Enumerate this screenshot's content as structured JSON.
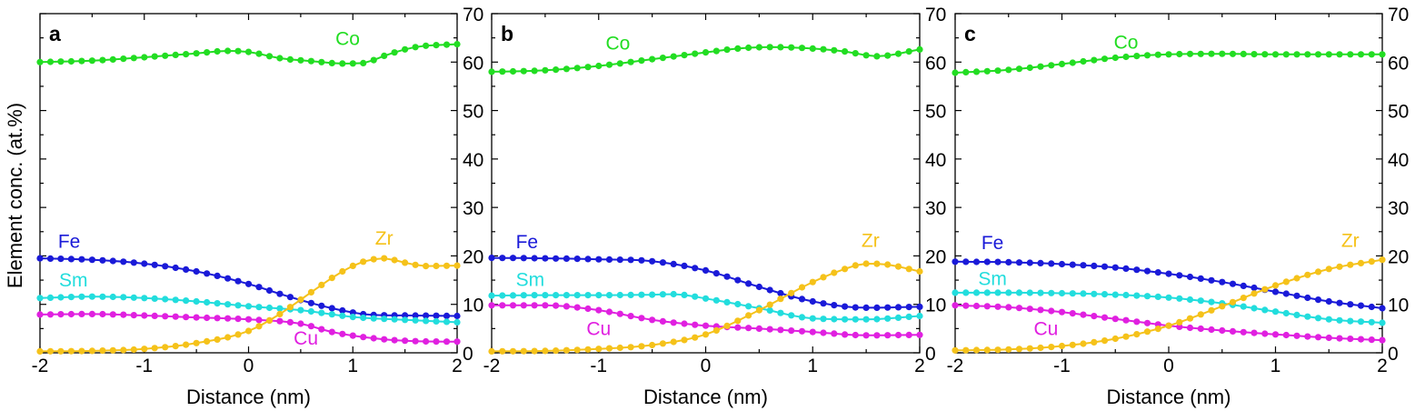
{
  "figure": {
    "ylabel": "Element conc. (at.%)"
  },
  "chart_data": [
    {
      "panel": "a",
      "type": "line",
      "xlabel": "Distance (nm)",
      "ylabel": "Element conc. (at.%)",
      "xlim": [
        -2,
        2
      ],
      "ylim": [
        0,
        70
      ],
      "xticks": [
        "-2",
        "-1",
        "0",
        "1",
        "2"
      ],
      "yticks": [
        "0",
        "10",
        "20",
        "30",
        "40",
        "50",
        "60",
        "70"
      ],
      "series": [
        {
          "name": "Co",
          "color": "#22dd22",
          "x": [
            -2,
            -1.5,
            -1,
            -0.5,
            -0.2,
            0,
            0.3,
            0.6,
            0.9,
            1.1,
            1.3,
            1.6,
            2
          ],
          "values": [
            60.0,
            60.3,
            61.0,
            61.8,
            62.3,
            62.1,
            60.8,
            60.2,
            59.7,
            59.8,
            61.3,
            63.1,
            63.7
          ]
        },
        {
          "name": "Fe",
          "color": "#1a1ad8",
          "x": [
            -2,
            -1.5,
            -1,
            -0.5,
            0,
            0.4,
            0.8,
            1.2,
            1.6,
            2
          ],
          "values": [
            19.5,
            19.2,
            18.4,
            16.8,
            14.2,
            11.5,
            9.2,
            7.8,
            7.7,
            7.6
          ]
        },
        {
          "name": "Sm",
          "color": "#22dddd",
          "x": [
            -2,
            -1.5,
            -1,
            -0.5,
            0,
            0.5,
            1,
            1.5,
            2
          ],
          "values": [
            11.3,
            11.6,
            11.3,
            10.6,
            9.6,
            8.8,
            7.4,
            6.8,
            6.3
          ]
        },
        {
          "name": "Cu",
          "color": "#e020e0",
          "x": [
            -2,
            -1.5,
            -1,
            -0.5,
            0,
            0.5,
            0.8,
            1.2,
            1.6,
            2
          ],
          "values": [
            7.9,
            8.0,
            7.7,
            7.3,
            6.9,
            6.0,
            4.3,
            3.0,
            2.4,
            2.3
          ]
        },
        {
          "name": "Zr",
          "color": "#f5c21a",
          "x": [
            -2,
            -1.5,
            -1,
            -0.5,
            0,
            0.3,
            0.6,
            0.9,
            1.1,
            1.3,
            1.5,
            1.7,
            2
          ],
          "values": [
            0.3,
            0.4,
            0.8,
            2.0,
            4.5,
            8.0,
            12.5,
            16.8,
            18.8,
            19.5,
            18.6,
            17.9,
            18.0
          ]
        }
      ],
      "annotations": [
        {
          "text": "Co",
          "series": "Co"
        },
        {
          "text": "Fe",
          "series": "Fe"
        },
        {
          "text": "Sm",
          "series": "Sm"
        },
        {
          "text": "Cu",
          "series": "Cu"
        },
        {
          "text": "Zr",
          "series": "Zr"
        }
      ]
    },
    {
      "panel": "b",
      "type": "line",
      "xlabel": "Distance (nm)",
      "ylabel": "Element conc. (at.%)",
      "xlim": [
        -2,
        2
      ],
      "ylim": [
        0,
        70
      ],
      "xticks": [
        "-2",
        "-1",
        "0",
        "1",
        "2"
      ],
      "yticks": [
        "0",
        "10",
        "20",
        "30",
        "40",
        "50",
        "60",
        "70"
      ],
      "series": [
        {
          "name": "Co",
          "color": "#22dd22",
          "x": [
            -2,
            -1.5,
            -1,
            -0.5,
            0,
            0.3,
            0.6,
            1,
            1.3,
            1.6,
            2
          ],
          "values": [
            58.0,
            58.3,
            59.2,
            60.6,
            62.0,
            62.8,
            63.1,
            62.8,
            62.2,
            61.2,
            62.6
          ]
        },
        {
          "name": "Fe",
          "color": "#1a1ad8",
          "x": [
            -2,
            -1.5,
            -1,
            -0.5,
            0,
            0.5,
            1,
            1.5,
            2
          ],
          "values": [
            19.6,
            19.5,
            19.3,
            18.9,
            17.0,
            13.6,
            10.6,
            9.3,
            9.5
          ]
        },
        {
          "name": "Sm",
          "color": "#22dddd",
          "x": [
            -2,
            -1.5,
            -1,
            -0.5,
            -0.3,
            0,
            0.5,
            1,
            1.5,
            2
          ],
          "values": [
            11.8,
            11.9,
            11.9,
            12.0,
            12.1,
            11.2,
            9.2,
            7.1,
            6.9,
            7.6
          ]
        },
        {
          "name": "Cu",
          "color": "#e020e0",
          "x": [
            -2,
            -1.5,
            -1,
            -0.5,
            0,
            0.5,
            1,
            1.5,
            2
          ],
          "values": [
            9.8,
            9.8,
            8.8,
            6.8,
            5.6,
            5.0,
            4.3,
            3.6,
            3.7
          ]
        },
        {
          "name": "Zr",
          "color": "#f5c21a",
          "x": [
            -2,
            -1.5,
            -1,
            -0.5,
            0,
            0.5,
            1,
            1.3,
            1.5,
            1.7,
            2
          ],
          "values": [
            0.3,
            0.4,
            0.8,
            1.6,
            3.8,
            8.8,
            14.6,
            17.3,
            18.4,
            18.2,
            16.8
          ]
        }
      ],
      "annotations": [
        {
          "text": "Co",
          "series": "Co"
        },
        {
          "text": "Fe",
          "series": "Fe"
        },
        {
          "text": "Sm",
          "series": "Sm"
        },
        {
          "text": "Cu",
          "series": "Cu"
        },
        {
          "text": "Zr",
          "series": "Zr"
        }
      ]
    },
    {
      "panel": "c",
      "type": "line",
      "xlabel": "Distance (nm)",
      "ylabel": "Element conc. (at.%)",
      "xlim": [
        -2,
        2
      ],
      "ylim": [
        0,
        70
      ],
      "xticks": [
        "-2",
        "-1",
        "0",
        "1",
        "2"
      ],
      "yticks": [
        "0",
        "10",
        "20",
        "30",
        "40",
        "50",
        "60",
        "70"
      ],
      "series": [
        {
          "name": "Co",
          "color": "#22dd22",
          "x": [
            -2,
            -1.5,
            -1,
            -0.5,
            0,
            0.5,
            1,
            1.5,
            2
          ],
          "values": [
            57.8,
            58.4,
            59.6,
            60.9,
            61.6,
            61.7,
            61.6,
            61.6,
            61.6
          ]
        },
        {
          "name": "Fe",
          "color": "#1a1ad8",
          "x": [
            -2,
            -1.5,
            -1,
            -0.5,
            0,
            0.5,
            1,
            1.5,
            2
          ],
          "values": [
            18.8,
            18.7,
            18.3,
            17.6,
            16.3,
            14.6,
            12.6,
            10.6,
            9.2
          ]
        },
        {
          "name": "Sm",
          "color": "#22dddd",
          "x": [
            -2,
            -1.5,
            -1,
            -0.5,
            0,
            0.5,
            1,
            1.5,
            2
          ],
          "values": [
            12.4,
            12.4,
            12.3,
            12.0,
            11.4,
            10.2,
            8.5,
            6.9,
            6.2
          ]
        },
        {
          "name": "Cu",
          "color": "#e020e0",
          "x": [
            -2,
            -1.5,
            -1,
            -0.5,
            0,
            0.5,
            1,
            1.5,
            2
          ],
          "values": [
            9.8,
            9.4,
            8.4,
            7.0,
            5.6,
            4.6,
            3.8,
            3.1,
            2.6
          ]
        },
        {
          "name": "Zr",
          "color": "#f5c21a",
          "x": [
            -2,
            -1.5,
            -1,
            -0.5,
            0,
            0.5,
            1,
            1.5,
            2
          ],
          "values": [
            0.5,
            0.7,
            1.4,
            2.9,
            5.6,
            9.6,
            13.9,
            17.3,
            19.2
          ]
        }
      ],
      "annotations": [
        {
          "text": "Co",
          "series": "Co"
        },
        {
          "text": "Fe",
          "series": "Fe"
        },
        {
          "text": "Sm",
          "series": "Sm"
        },
        {
          "text": "Cu",
          "series": "Cu"
        },
        {
          "text": "Zr",
          "series": "Zr"
        }
      ]
    }
  ]
}
